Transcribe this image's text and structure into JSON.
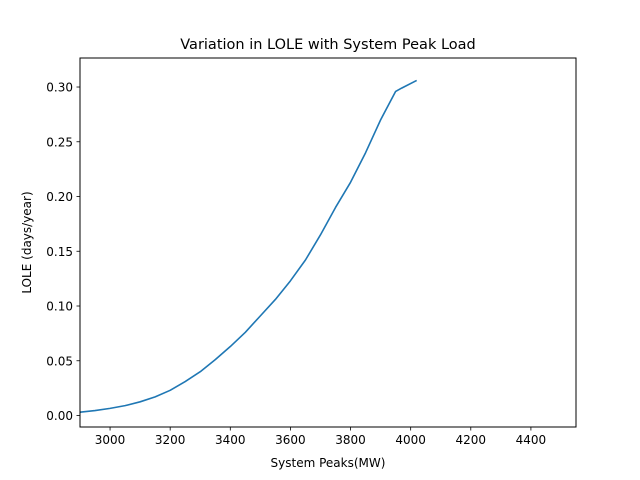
{
  "chart_data": {
    "type": "line",
    "title": "Variation in LOLE with System Peak Load",
    "xlabel": "System Peaks(MW)",
    "ylabel": "LOLE (days/year)",
    "xlim": [
      2900,
      4550
    ],
    "ylim": [
      -0.0105,
      0.3265
    ],
    "xticks": [
      3000,
      3200,
      3400,
      3600,
      3800,
      4000,
      4200,
      4400
    ],
    "xtick_labels": [
      "3000",
      "3200",
      "3400",
      "3600",
      "3800",
      "4000",
      "4200",
      "4400"
    ],
    "yticks": [
      0.0,
      0.05,
      0.1,
      0.15,
      0.2,
      0.25,
      0.3
    ],
    "ytick_labels": [
      "0.00",
      "0.05",
      "0.10",
      "0.15",
      "0.20",
      "0.25",
      "0.30"
    ],
    "grid": false,
    "line_color": "#1f77b4",
    "series": [
      {
        "x": [
          2900,
          2950,
          3000,
          3050,
          3100,
          3150,
          3200,
          3250,
          3300,
          3350,
          3400,
          3450,
          3500,
          3550,
          3600,
          3650,
          3700,
          3750,
          3800,
          3850,
          3900,
          3950,
          3970,
          4020
        ],
        "values": [
          0.003,
          0.0045,
          0.0065,
          0.009,
          0.0125,
          0.017,
          0.023,
          0.031,
          0.04,
          0.051,
          0.063,
          0.076,
          0.091,
          0.106,
          0.123,
          0.142,
          0.165,
          0.19,
          0.213,
          0.24,
          0.27,
          0.296,
          0.299,
          0.306
        ]
      }
    ]
  }
}
